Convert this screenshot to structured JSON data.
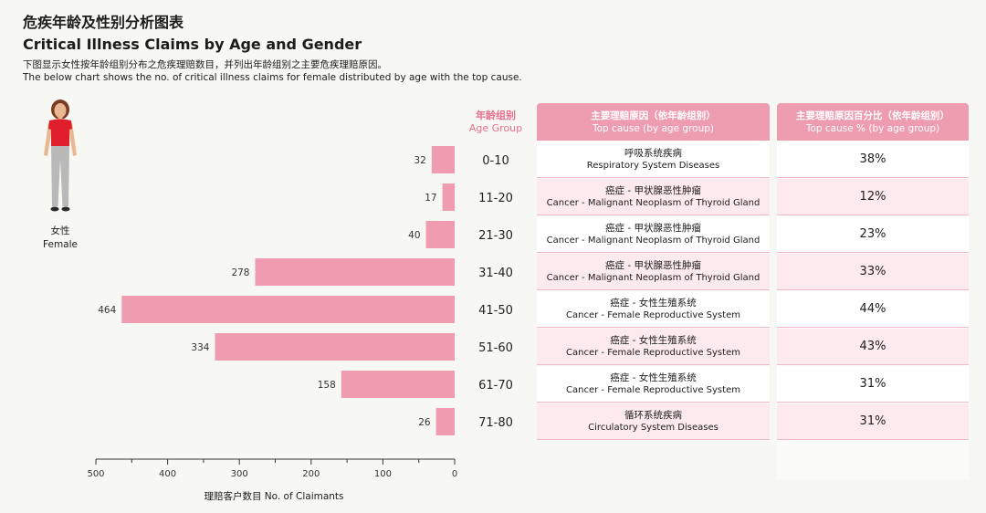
{
  "header": {
    "title_zh": "危疾年龄及性别分析图表",
    "title_en": "Critical Illness Claims by Age and Gender",
    "subtitle_zh": "下图显示女性按年龄组别分布之危疾理赔数目，并列出年龄组别之主要危疾理赔原因。",
    "subtitle_en": "The below chart shows the no. of critical illness claims for female distributed by age with the top cause."
  },
  "figure": {
    "label_zh": "女性",
    "label_en": "Female",
    "icon": "female-person-icon"
  },
  "chart_data": {
    "type": "bar",
    "orientation": "horizontal",
    "direction": "right-to-left",
    "categories": [
      "0-10",
      "11-20",
      "21-30",
      "31-40",
      "41-50",
      "51-60",
      "61-70",
      "71-80"
    ],
    "values": [
      32,
      17,
      40,
      278,
      464,
      334,
      158,
      26
    ],
    "xlabel": "理赔客户数目 No. of Claimants",
    "xlim": [
      0,
      500
    ],
    "xticks": [
      500,
      400,
      300,
      200,
      100,
      0
    ],
    "category_header_zh": "年龄组别",
    "category_header_en": "Age Group",
    "bar_color": "#ef9bb0"
  },
  "table": {
    "cause_header_zh": "主要理赔原因（依年龄组别）",
    "cause_header_en": "Top cause (by age group)",
    "pct_header_zh": "主要理赔原因百分比（依年龄组别）",
    "pct_header_en": "Top cause % (by age group)",
    "rows": [
      {
        "cause_zh": "呼吸系统疾病",
        "cause_en": "Respiratory System Diseases",
        "pct": "38%"
      },
      {
        "cause_zh": "癌症 - 甲状腺恶性肿瘤",
        "cause_en": "Cancer - Malignant Neoplasm of Thyroid Gland",
        "pct": "12%"
      },
      {
        "cause_zh": "癌症 - 甲状腺恶性肿瘤",
        "cause_en": "Cancer - Malignant Neoplasm of Thyroid Gland",
        "pct": "23%"
      },
      {
        "cause_zh": "癌症 - 甲状腺恶性肿瘤",
        "cause_en": "Cancer - Malignant Neoplasm of Thyroid Gland",
        "pct": "33%"
      },
      {
        "cause_zh": "癌症 - 女性生殖系统",
        "cause_en": "Cancer - Female Reproductive System",
        "pct": "44%"
      },
      {
        "cause_zh": "癌症 - 女性生殖系统",
        "cause_en": "Cancer - Female Reproductive System",
        "pct": "43%"
      },
      {
        "cause_zh": "癌症 - 女性生殖系统",
        "cause_en": "Cancer - Female Reproductive System",
        "pct": "31%"
      },
      {
        "cause_zh": "循环系统疾病",
        "cause_en": "Circulatory System Diseases",
        "pct": "31%"
      }
    ]
  },
  "colors": {
    "accent": "#e8708c",
    "header_bg": "#ee9cb0",
    "row_alt": "#fdeaee"
  }
}
